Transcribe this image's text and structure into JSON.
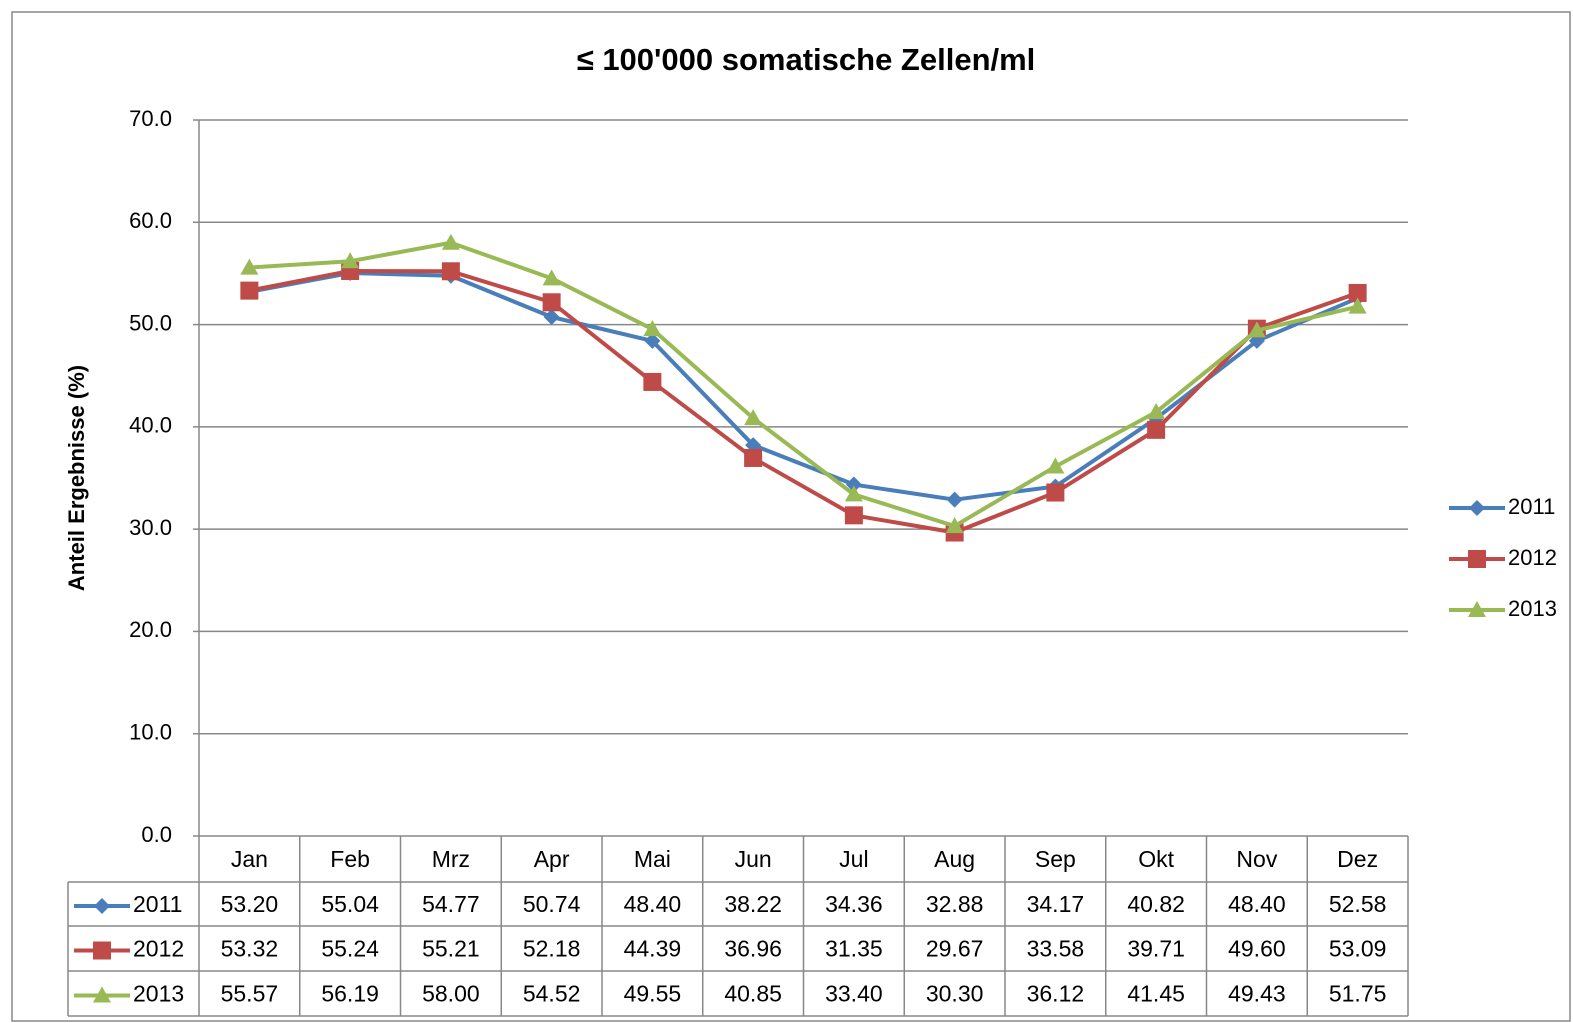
{
  "chart_data": {
    "type": "line",
    "title": "≤ 100'000 somatische Zellen/ml",
    "y_label": "Anteil Ergebnisse (%)",
    "categories": [
      "Jan",
      "Feb",
      "Mrz",
      "Apr",
      "Mai",
      "Jun",
      "Jul",
      "Aug",
      "Sep",
      "Okt",
      "Nov",
      "Dez"
    ],
    "ylim": [
      0,
      70
    ],
    "yticks": [
      {
        "value": 0,
        "label": "0.0"
      },
      {
        "value": 10,
        "label": "10.0"
      },
      {
        "value": 20,
        "label": "20.0"
      },
      {
        "value": 30,
        "label": "30.0"
      },
      {
        "value": 40,
        "label": "40.0"
      },
      {
        "value": 50,
        "label": "50.0"
      },
      {
        "value": 60,
        "label": "60.0"
      },
      {
        "value": 70,
        "label": "70.0"
      }
    ],
    "grid": true,
    "legend": "right",
    "data_table": true,
    "series": [
      {
        "name": "2011",
        "color": "#4a7ebb",
        "marker": "diamond",
        "values": [
          53.2,
          55.04,
          54.77,
          50.74,
          48.4,
          38.22,
          34.36,
          32.88,
          34.17,
          40.82,
          48.4,
          52.58
        ],
        "value_labels": [
          "53.20",
          "55.04",
          "54.77",
          "50.74",
          "48.40",
          "38.22",
          "34.36",
          "32.88",
          "34.17",
          "40.82",
          "48.40",
          "52.58"
        ]
      },
      {
        "name": "2012",
        "color": "#be4b48",
        "marker": "square",
        "values": [
          53.32,
          55.24,
          55.21,
          52.18,
          44.39,
          36.96,
          31.35,
          29.67,
          33.58,
          39.71,
          49.6,
          53.09
        ],
        "value_labels": [
          "53.32",
          "55.24",
          "55.21",
          "52.18",
          "44.39",
          "36.96",
          "31.35",
          "29.67",
          "33.58",
          "39.71",
          "49.60",
          "53.09"
        ]
      },
      {
        "name": "2013",
        "color": "#98b954",
        "marker": "triangle",
        "values": [
          55.57,
          56.19,
          58.0,
          54.52,
          49.55,
          40.85,
          33.4,
          30.3,
          36.12,
          41.45,
          49.43,
          51.75
        ],
        "value_labels": [
          "55.57",
          "56.19",
          "58.00",
          "54.52",
          "49.55",
          "40.85",
          "33.40",
          "30.30",
          "36.12",
          "41.45",
          "49.43",
          "51.75"
        ]
      }
    ]
  }
}
